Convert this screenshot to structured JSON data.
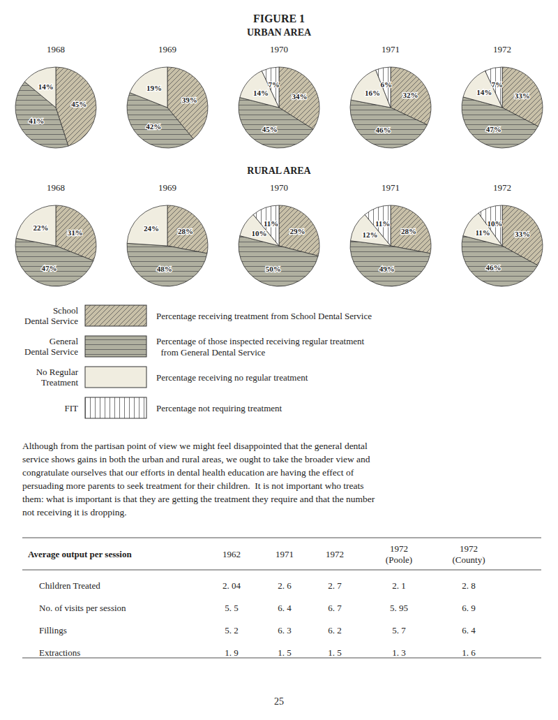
{
  "title": "FIGURE 1",
  "chart_data": [
    {
      "type": "pie",
      "title": "URBAN AREA",
      "data_labels": true,
      "categories": [
        1968,
        1969,
        1970,
        1971,
        1972
      ],
      "series": [
        {
          "name": "School\nDental Service",
          "description": "Percentage receiving treatment from School Dental Service",
          "color": "#c8c0a8",
          "values": [
            45,
            39,
            34,
            32,
            33
          ],
          "value_labels": [
            "45%",
            "39%",
            "34%",
            "32%",
            "33%"
          ]
        },
        {
          "name": "General\nDental Service",
          "description": "Percentage of those inspected receiving regular treatment\n  from General Dental Service",
          "color": "#b0b0a0",
          "values": [
            41,
            42,
            45,
            46,
            47
          ],
          "value_labels": [
            "41%",
            "42%",
            "45%",
            "46%",
            "47%"
          ]
        },
        {
          "name": "No Regular\nTreatment",
          "description": "Percentage receiving no regular treatment",
          "color": "#f0ede0",
          "values": [
            14,
            19,
            14,
            16,
            14
          ],
          "value_labels": [
            "14%",
            "19%",
            "14%",
            "16%",
            "14%"
          ]
        },
        {
          "name": "FIT",
          "description": "Percentage not requiring treatment",
          "color": "#ffffff",
          "values": [
            0,
            0,
            7,
            6,
            7
          ],
          "value_labels": [
            null,
            null,
            "7%",
            "6%",
            "7%"
          ]
        }
      ]
    },
    {
      "type": "pie",
      "title": "RURAL AREA",
      "data_labels": true,
      "categories": [
        1968,
        1969,
        1970,
        1971,
        1972
      ],
      "series": [
        {
          "color": "#c8c0a8",
          "values": [
            31,
            28,
            29,
            28,
            33
          ],
          "value_labels": [
            "31%",
            "28%",
            "29%",
            "28%",
            "33%"
          ]
        },
        {
          "color": "#b0b0a0",
          "values": [
            47,
            48,
            50,
            49,
            46
          ],
          "value_labels": [
            "47%",
            "48%",
            "50%",
            "49%",
            "46%"
          ]
        },
        {
          "color": "#f0ede0",
          "values": [
            22,
            24,
            10,
            12,
            11
          ],
          "value_labels": [
            "22%",
            "24%",
            "10%",
            "12%",
            "11%"
          ]
        },
        {
          "color": "#ffffff",
          "values": [
            0,
            0,
            11,
            11,
            10
          ],
          "value_labels": [
            null,
            null,
            "11%",
            "11%",
            "10%"
          ]
        }
      ]
    }
  ],
  "paragraph": [
    "Although from the partisan point of view we might feel disappointed that the general dental",
    "service shows gains in both the urban and rural areas, we ought to take the broader view and",
    "congratulate ourselves that our efforts in dental health education are having the effect of",
    "persuading more parents to seek treatment for their children.  It is not important who treats",
    "them: what is important is that they are getting the treatment they require and that the number",
    "not receiving it is dropping."
  ],
  "table": {
    "header": "Average output per session",
    "columns": [
      "1962",
      "1971",
      "1972",
      "1972\n(Poole)",
      "1972\n(County)"
    ],
    "rows": [
      {
        "label": "Children Treated",
        "values": [
          "2. 04",
          "2. 6",
          "2. 7",
          "2. 1",
          "2. 8"
        ]
      },
      {
        "label": "No. of visits per session",
        "values": [
          "5. 5",
          "6. 4",
          "6. 7",
          "5. 95",
          "6. 9"
        ]
      },
      {
        "label": "Fillings",
        "values": [
          "5. 2",
          "6. 3",
          "6. 2",
          "5. 7",
          "6. 4"
        ]
      },
      {
        "label": "Extractions",
        "values": [
          "1. 9",
          "1. 5",
          "1. 5",
          "1. 3",
          "1. 6"
        ]
      }
    ]
  },
  "page_number": "25"
}
